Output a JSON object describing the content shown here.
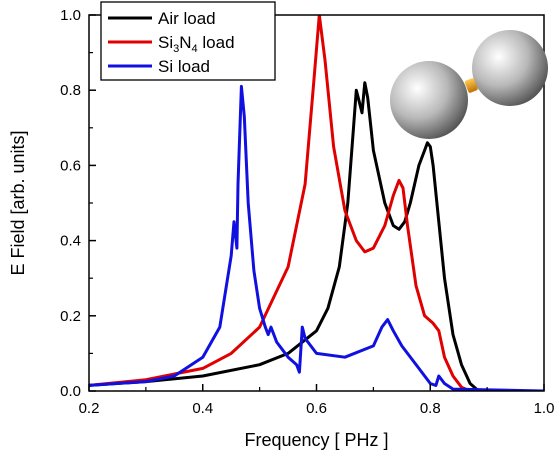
{
  "chart_data": {
    "type": "line",
    "xlabel": "Frequency [ PHz ]",
    "ylabel": "E Field [arb. units]",
    "xlim": [
      0.2,
      1.0
    ],
    "ylim": [
      0.0,
      1.0
    ],
    "x_ticks": [
      "0.2",
      "0.4",
      "0.6",
      "0.8",
      "1.0"
    ],
    "y_ticks": [
      "0.0",
      "0.2",
      "0.4",
      "0.6",
      "0.8",
      "1.0"
    ],
    "grid": false,
    "legend_position": "top-left",
    "inset": "dimer-spheres-with-gap-load",
    "series": [
      {
        "name": "Air load",
        "color": "#000000",
        "points": [
          [
            0.2,
            0.015
          ],
          [
            0.3,
            0.025
          ],
          [
            0.4,
            0.04
          ],
          [
            0.5,
            0.07
          ],
          [
            0.55,
            0.1
          ],
          [
            0.6,
            0.16
          ],
          [
            0.62,
            0.22
          ],
          [
            0.64,
            0.33
          ],
          [
            0.655,
            0.5
          ],
          [
            0.665,
            0.7
          ],
          [
            0.67,
            0.8
          ],
          [
            0.675,
            0.77
          ],
          [
            0.68,
            0.74
          ],
          [
            0.685,
            0.82
          ],
          [
            0.69,
            0.78
          ],
          [
            0.7,
            0.64
          ],
          [
            0.72,
            0.5
          ],
          [
            0.735,
            0.44
          ],
          [
            0.745,
            0.43
          ],
          [
            0.755,
            0.45
          ],
          [
            0.765,
            0.5
          ],
          [
            0.78,
            0.6
          ],
          [
            0.79,
            0.64
          ],
          [
            0.795,
            0.66
          ],
          [
            0.8,
            0.65
          ],
          [
            0.805,
            0.6
          ],
          [
            0.815,
            0.45
          ],
          [
            0.825,
            0.3
          ],
          [
            0.84,
            0.15
          ],
          [
            0.855,
            0.07
          ],
          [
            0.87,
            0.02
          ],
          [
            0.885,
            0.0
          ],
          [
            1.0,
            0.0
          ]
        ]
      },
      {
        "name": "Si3N4 load",
        "color": "#e00000",
        "points": [
          [
            0.2,
            0.015
          ],
          [
            0.3,
            0.03
          ],
          [
            0.4,
            0.06
          ],
          [
            0.45,
            0.1
          ],
          [
            0.5,
            0.17
          ],
          [
            0.55,
            0.33
          ],
          [
            0.58,
            0.55
          ],
          [
            0.595,
            0.82
          ],
          [
            0.605,
            1.0
          ],
          [
            0.615,
            0.88
          ],
          [
            0.63,
            0.65
          ],
          [
            0.65,
            0.48
          ],
          [
            0.67,
            0.4
          ],
          [
            0.685,
            0.37
          ],
          [
            0.7,
            0.38
          ],
          [
            0.72,
            0.44
          ],
          [
            0.735,
            0.52
          ],
          [
            0.745,
            0.56
          ],
          [
            0.752,
            0.54
          ],
          [
            0.76,
            0.44
          ],
          [
            0.775,
            0.28
          ],
          [
            0.79,
            0.2
          ],
          [
            0.805,
            0.18
          ],
          [
            0.815,
            0.16
          ],
          [
            0.825,
            0.09
          ],
          [
            0.84,
            0.04
          ],
          [
            0.855,
            0.01
          ],
          [
            0.87,
            0.0
          ],
          [
            1.0,
            0.0
          ]
        ]
      },
      {
        "name": "Si load",
        "color": "#1010e0",
        "points": [
          [
            0.2,
            0.015
          ],
          [
            0.3,
            0.025
          ],
          [
            0.35,
            0.04
          ],
          [
            0.4,
            0.09
          ],
          [
            0.43,
            0.17
          ],
          [
            0.45,
            0.36
          ],
          [
            0.455,
            0.45
          ],
          [
            0.46,
            0.38
          ],
          [
            0.462,
            0.55
          ],
          [
            0.468,
            0.81
          ],
          [
            0.473,
            0.73
          ],
          [
            0.48,
            0.5
          ],
          [
            0.49,
            0.32
          ],
          [
            0.5,
            0.22
          ],
          [
            0.51,
            0.17
          ],
          [
            0.515,
            0.15
          ],
          [
            0.52,
            0.17
          ],
          [
            0.53,
            0.13
          ],
          [
            0.55,
            0.09
          ],
          [
            0.565,
            0.07
          ],
          [
            0.57,
            0.05
          ],
          [
            0.575,
            0.17
          ],
          [
            0.58,
            0.14
          ],
          [
            0.6,
            0.1
          ],
          [
            0.65,
            0.09
          ],
          [
            0.7,
            0.12
          ],
          [
            0.715,
            0.17
          ],
          [
            0.725,
            0.19
          ],
          [
            0.735,
            0.16
          ],
          [
            0.75,
            0.12
          ],
          [
            0.78,
            0.06
          ],
          [
            0.8,
            0.02
          ],
          [
            0.81,
            0.015
          ],
          [
            0.815,
            0.04
          ],
          [
            0.825,
            0.02
          ],
          [
            0.84,
            0.005
          ],
          [
            1.0,
            0.0
          ]
        ]
      }
    ]
  },
  "legend": {
    "items": [
      {
        "label_parts": [
          [
            "Air load",
            ""
          ]
        ],
        "color": "#000000"
      },
      {
        "label_parts": [
          [
            "Si",
            ""
          ],
          [
            "3",
            "sub"
          ],
          [
            "N",
            ""
          ],
          [
            "4",
            "sub"
          ],
          [
            " load",
            ""
          ]
        ],
        "color": "#e00000"
      },
      {
        "label_parts": [
          [
            "Si load",
            ""
          ]
        ],
        "color": "#1010e0"
      }
    ]
  }
}
